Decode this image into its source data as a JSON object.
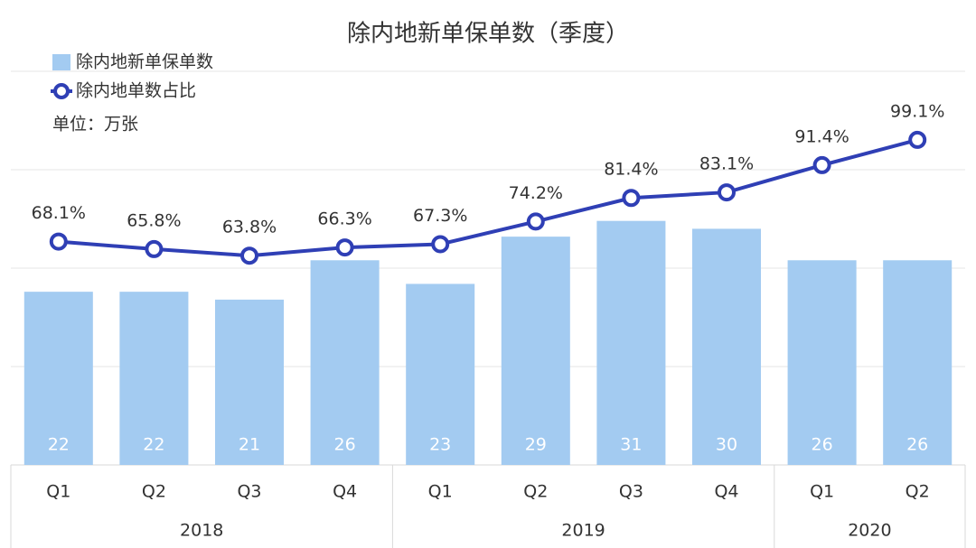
{
  "chart_data": {
    "type": "bar-line",
    "title": "除内地新单保单数（季度）",
    "unit_note": "单位：万张",
    "categories": [
      "Q1",
      "Q2",
      "Q3",
      "Q4",
      "Q1",
      "Q2",
      "Q3",
      "Q4",
      "Q1",
      "Q2"
    ],
    "groups": [
      {
        "label": "2018",
        "size": 4
      },
      {
        "label": "2019",
        "size": 4
      },
      {
        "label": "2020",
        "size": 2
      }
    ],
    "series": [
      {
        "name": "除内地新单保单数",
        "type": "bar",
        "color": "#a3cbf1",
        "values": [
          22,
          22,
          21,
          26,
          23,
          29,
          31,
          30,
          26,
          26
        ]
      },
      {
        "name": "除内地单数占比",
        "type": "line",
        "axis": "y2",
        "color": "#2f3fb5",
        "values": [
          68.1,
          65.8,
          63.8,
          66.3,
          67.3,
          74.2,
          81.4,
          83.1,
          91.4,
          99.1
        ],
        "value_labels": [
          "68.1%",
          "65.8%",
          "63.8%",
          "66.3%",
          "67.3%",
          "74.2%",
          "81.4%",
          "83.1%",
          "91.4%",
          "99.1%"
        ]
      }
    ],
    "ylim": [
      0,
      50
    ],
    "yticks": [
      0,
      12.5,
      25,
      37.5,
      50
    ],
    "y2lim": [
      0,
      120
    ],
    "grid": true
  }
}
